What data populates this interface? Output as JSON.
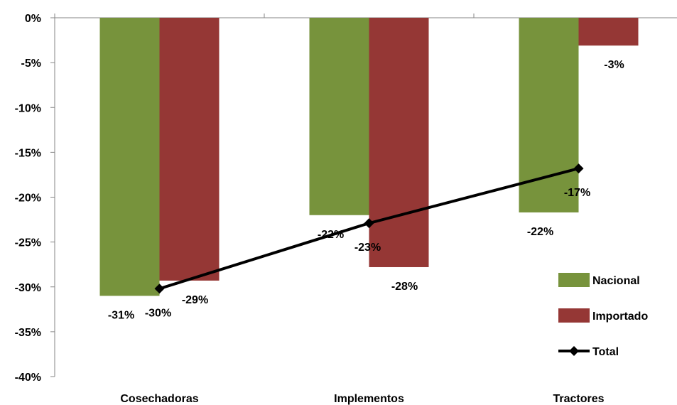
{
  "chart_data": {
    "type": "bar",
    "categories": [
      "Cosechadoras",
      "Implementos",
      "Tractores"
    ],
    "series": [
      {
        "name": "Nacional",
        "kind": "bar",
        "color": "#77933c",
        "values": [
          -31,
          -22,
          -21.7
        ],
        "labels": [
          "-31%",
          "-22%",
          "-22%"
        ]
      },
      {
        "name": "Importado",
        "kind": "bar",
        "color": "#953735",
        "values": [
          -29.3,
          -27.8,
          -3.1
        ],
        "labels": [
          "-29%",
          "-28%",
          "-3%"
        ]
      },
      {
        "name": "Total",
        "kind": "line",
        "color": "#000000",
        "values": [
          -30.2,
          -22.9,
          -16.8
        ],
        "labels": [
          "-30%",
          "-23%",
          "-17%"
        ]
      }
    ],
    "y_ticks": [
      "0%",
      "-5%",
      "-10%",
      "-15%",
      "-20%",
      "-25%",
      "-30%",
      "-35%",
      "-40%"
    ],
    "ylim": [
      -40,
      0
    ],
    "title": "",
    "xlabel": "",
    "ylabel": "",
    "grid": false,
    "legend_position": "right"
  }
}
